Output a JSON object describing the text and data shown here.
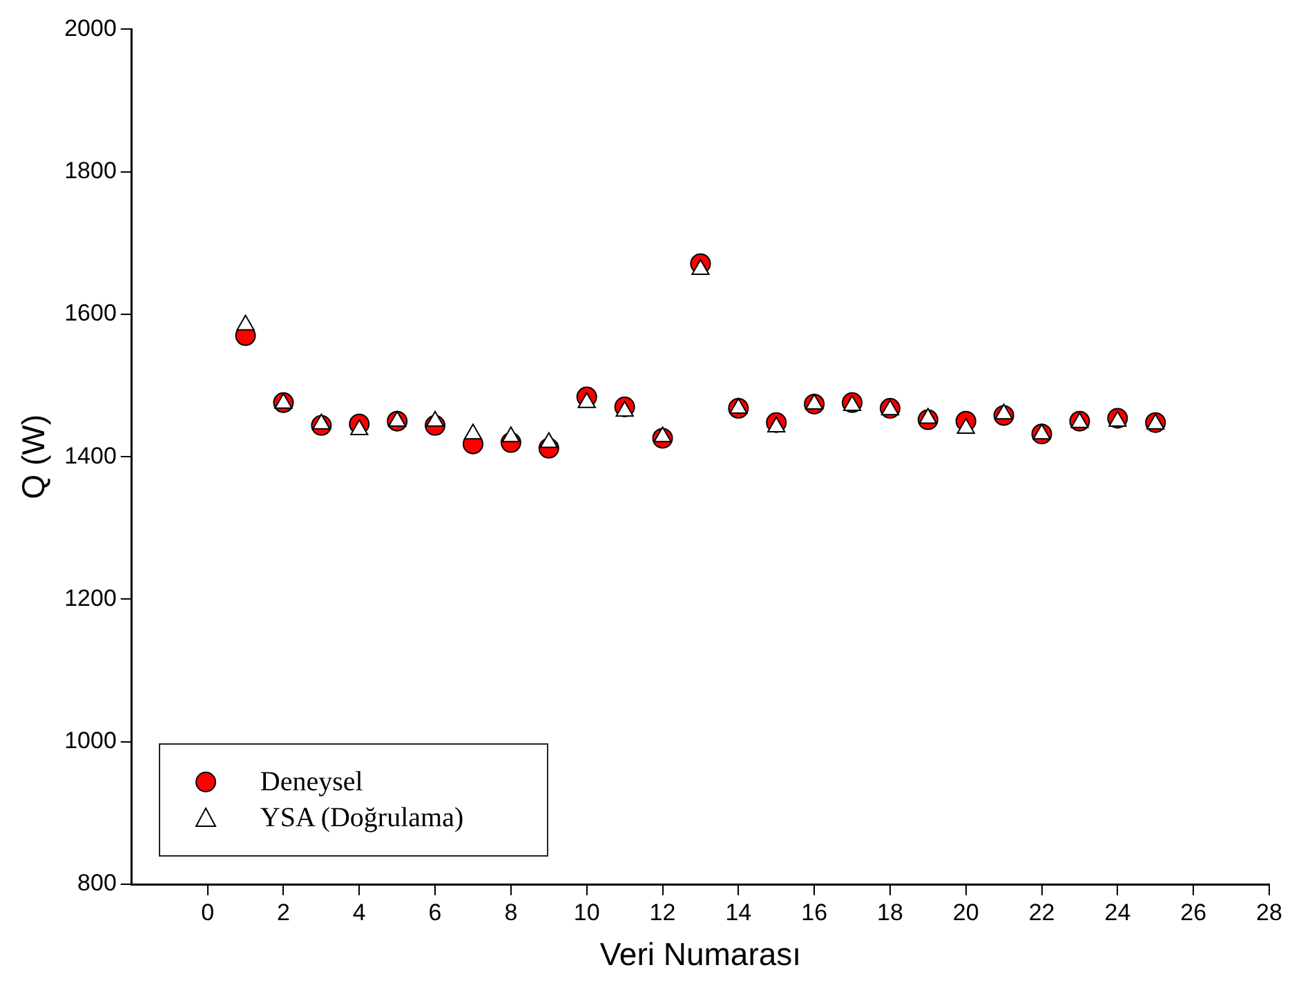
{
  "chart_data": {
    "type": "scatter",
    "xlabel": "Veri Numarası",
    "ylabel": "Q (W)",
    "x": [
      1,
      2,
      3,
      4,
      5,
      6,
      7,
      8,
      9,
      10,
      11,
      12,
      13,
      14,
      15,
      16,
      17,
      18,
      19,
      20,
      21,
      22,
      23,
      24,
      25
    ],
    "series": [
      {
        "name": "Deneysel",
        "color": "#ff0000",
        "marker": "circle",
        "values": [
          1570,
          1476,
          1444,
          1446,
          1450,
          1444,
          1418,
          1420,
          1412,
          1484,
          1470,
          1426,
          1671,
          1468,
          1448,
          1474,
          1476,
          1468,
          1452,
          1450,
          1458,
          1432,
          1450,
          1454,
          1448
        ]
      },
      {
        "name": "YSA (Doğrulama)",
        "color": "#ffffff",
        "marker": "triangle",
        "values": [
          1585,
          1475,
          1446,
          1438,
          1450,
          1450,
          1432,
          1428,
          1420,
          1476,
          1464,
          1428,
          1663,
          1468,
          1442,
          1474,
          1472,
          1466,
          1454,
          1440,
          1460,
          1432,
          1448,
          1450,
          1446
        ]
      }
    ],
    "xlim": [
      -2,
      28
    ],
    "xticks": [
      0,
      2,
      4,
      6,
      8,
      10,
      12,
      14,
      16,
      18,
      20,
      22,
      24,
      26,
      28
    ],
    "ylim": [
      800,
      2000
    ],
    "yticks": [
      800,
      1000,
      1200,
      1400,
      1600,
      1800,
      2000
    ],
    "grid": false,
    "legend": "bottom left"
  }
}
